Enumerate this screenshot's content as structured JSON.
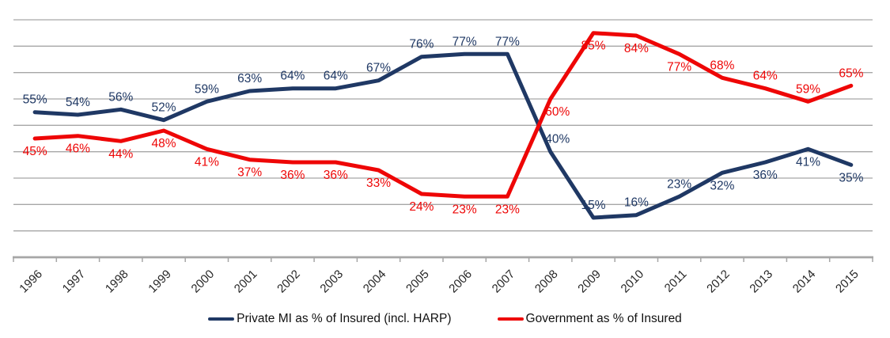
{
  "chart_data": {
    "type": "line",
    "title": "",
    "xlabel": "",
    "ylabel": "",
    "categories": [
      "1996",
      "1997",
      "1998",
      "1999",
      "2000",
      "2001",
      "2002",
      "2003",
      "2004",
      "2005",
      "2006",
      "2007",
      "2008",
      "2009",
      "2010",
      "2011",
      "2012",
      "2013",
      "2014",
      "2015"
    ],
    "series": [
      {
        "name": "Private MI as % of Insured (incl. HARP)",
        "color": "#1f3864",
        "values": [
          55,
          54,
          56,
          52,
          59,
          63,
          64,
          64,
          67,
          76,
          77,
          77,
          40,
          15,
          16,
          23,
          32,
          36,
          41,
          35
        ],
        "label_side": [
          "above",
          "above",
          "above",
          "above",
          "above",
          "above",
          "above",
          "above",
          "above",
          "above",
          "above",
          "above",
          "above",
          "above",
          "above",
          "above",
          "below",
          "below",
          "below",
          "below"
        ]
      },
      {
        "name": "Government as % of Insured",
        "color": "#ee0606",
        "values": [
          45,
          46,
          44,
          48,
          41,
          37,
          36,
          36,
          33,
          24,
          23,
          23,
          60,
          85,
          84,
          77,
          68,
          64,
          59,
          65
        ],
        "label_side": [
          "below",
          "below",
          "below",
          "below",
          "below",
          "below",
          "below",
          "below",
          "below",
          "below",
          "below",
          "below",
          "below",
          "below",
          "below",
          "below",
          "above",
          "above",
          "above",
          "above"
        ]
      }
    ],
    "data_label_format": "percent",
    "ylim": [
      0,
      95
    ],
    "gridline_values": [
      10,
      20,
      30,
      40,
      50,
      60,
      70,
      80,
      90
    ],
    "grid": "horizontal",
    "y_axis_labels_visible": false,
    "legend_position": "bottom",
    "x_tick_rotation": -45
  },
  "colors": {
    "private_mi_line": "#1f3864",
    "government_line": "#ee0606",
    "gridline": "#a6a6a6",
    "axis_line": "#a6a6a6",
    "tick": "#a6a6a6",
    "year_label": "#262626",
    "legend_text": "#111111"
  }
}
